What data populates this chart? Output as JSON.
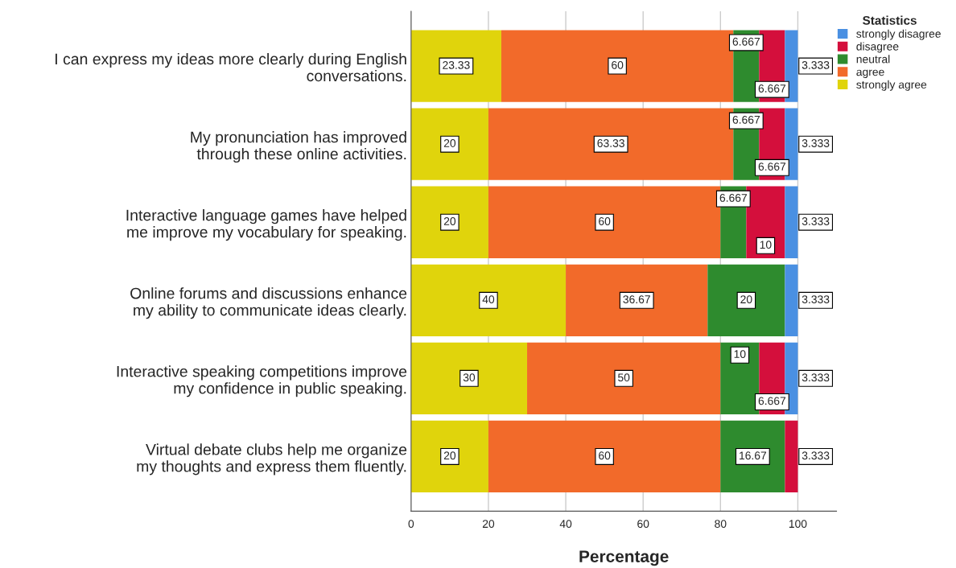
{
  "chart_data": {
    "type": "bar",
    "orientation": "horizontal",
    "stacked": true,
    "xlabel": "Percentage",
    "legend_title": "Statistics",
    "legend": "top right",
    "grid": "x",
    "data_labels": true,
    "categories": [
      "I can express my ideas more clearly during English\nconversations.",
      "My pronunciation has improved\nthrough these online activities.",
      "Interactive language games have helped\nme improve my vocabulary for speaking.",
      "Online forums and discussions enhance\nmy ability to communicate ideas clearly.",
      "Interactive speaking competitions improve\nmy confidence in public speaking.",
      "Virtual debate clubs help me organize\nmy thoughts and express them fluently."
    ],
    "series": [
      {
        "name": "strongly agree",
        "color": "#e0d40c",
        "values": [
          23.33,
          20,
          20,
          40,
          30,
          20
        ]
      },
      {
        "name": "agree",
        "color": "#f26a2a",
        "values": [
          60,
          63.33,
          60,
          36.67,
          50,
          60
        ]
      },
      {
        "name": "neutral",
        "color": "#2e8b2e",
        "values": [
          6.667,
          6.667,
          6.667,
          20,
          10,
          16.67
        ]
      },
      {
        "name": "disagree",
        "color": "#d40f3c",
        "values": [
          6.667,
          6.667,
          10,
          null,
          6.667,
          3.333
        ]
      },
      {
        "name": "strongly disagree",
        "color": "#4a90e2",
        "values": [
          3.333,
          3.333,
          3.333,
          3.333,
          3.333,
          null
        ]
      }
    ],
    "xlim": [
      0,
      110
    ],
    "xticks": [
      0,
      20,
      40,
      60,
      80,
      100
    ]
  }
}
